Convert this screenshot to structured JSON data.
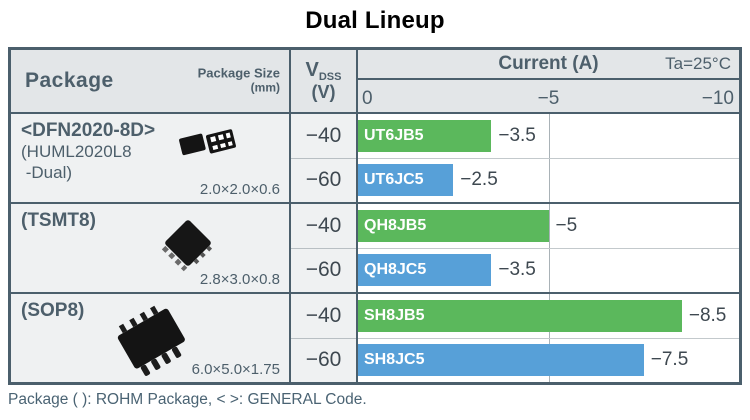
{
  "title": "Dual Lineup",
  "footnote": "Package ( ): ROHM Package, < >: GENERAL Code.",
  "colors": {
    "green": "#5bb85c",
    "blue": "#57a0d8",
    "border_slate": "#4b5f6c",
    "header_bg": "#e3e6e8",
    "cell_bg": "#eff1f2"
  },
  "table": {
    "header": {
      "package_label": "Package",
      "package_size_label": "Package Size",
      "package_size_unit": "(mm)",
      "vdss_v": "V",
      "vdss_sub": "DSS",
      "vdss_unit": "(V)",
      "current_label": "Current (A)",
      "ta_label": "Ta=25°C",
      "axis_ticks": [
        "0",
        "−5",
        "−10"
      ]
    },
    "groups": [
      {
        "name_primary": "<DFN2020-8D>",
        "name_secondary_1": "(HUML2020L8",
        "name_secondary_2": " -Dual)",
        "size": "2.0×2.0×0.6",
        "icon": "dfn2020-package-icon",
        "rows": [
          {
            "vdss": "−40",
            "part": "UT6JB5",
            "value": 3.5,
            "value_label": "−3.5",
            "color": "green"
          },
          {
            "vdss": "−60",
            "part": "UT6JC5",
            "value": 2.5,
            "value_label": "−2.5",
            "color": "blue"
          }
        ]
      },
      {
        "name_primary": "(TSMT8)",
        "name_secondary_1": "",
        "name_secondary_2": "",
        "size": "2.8×3.0×0.8",
        "icon": "tsmt8-package-icon",
        "rows": [
          {
            "vdss": "−40",
            "part": "QH8JB5",
            "value": 5.0,
            "value_label": "−5",
            "color": "green"
          },
          {
            "vdss": "−60",
            "part": "QH8JC5",
            "value": 3.5,
            "value_label": "−3.5",
            "color": "blue"
          }
        ]
      },
      {
        "name_primary": "(SOP8)",
        "name_secondary_1": "",
        "name_secondary_2": "",
        "size": "6.0×5.0×1.75",
        "icon": "sop8-package-icon",
        "rows": [
          {
            "vdss": "−40",
            "part": "SH8JB5",
            "value": 8.5,
            "value_label": "−8.5",
            "color": "green"
          },
          {
            "vdss": "−60",
            "part": "SH8JC5",
            "value": 7.5,
            "value_label": "−7.5",
            "color": "blue"
          }
        ]
      }
    ]
  },
  "chart_data": {
    "type": "bar",
    "orientation": "horizontal",
    "title": "Current (A)",
    "condition": "Ta=25°C",
    "xlabel": "Current (A)",
    "xlim": [
      0,
      -10
    ],
    "xmax_abs": 10,
    "xticks": [
      "0",
      "−5",
      "−10"
    ],
    "grid": "vertical line at −5",
    "series": [
      {
        "package": "<DFN2020-8D> (HUML2020L8 -Dual)",
        "package_size_mm": "2.0×2.0×0.6",
        "vdss_v": -40,
        "part": "UT6JB5",
        "current_a": -3.5,
        "color": "green"
      },
      {
        "package": "<DFN2020-8D> (HUML2020L8 -Dual)",
        "package_size_mm": "2.0×2.0×0.6",
        "vdss_v": -60,
        "part": "UT6JC5",
        "current_a": -2.5,
        "color": "blue"
      },
      {
        "package": "(TSMT8)",
        "package_size_mm": "2.8×3.0×0.8",
        "vdss_v": -40,
        "part": "QH8JB5",
        "current_a": -5,
        "color": "green"
      },
      {
        "package": "(TSMT8)",
        "package_size_mm": "2.8×3.0×0.8",
        "vdss_v": -60,
        "part": "QH8JC5",
        "current_a": -3.5,
        "color": "blue"
      },
      {
        "package": "(SOP8)",
        "package_size_mm": "6.0×5.0×1.75",
        "vdss_v": -40,
        "part": "SH8JB5",
        "current_a": -8.5,
        "color": "green"
      },
      {
        "package": "(SOP8)",
        "package_size_mm": "6.0×5.0×1.75",
        "vdss_v": -60,
        "part": "SH8JC5",
        "current_a": -7.5,
        "color": "blue"
      }
    ]
  }
}
